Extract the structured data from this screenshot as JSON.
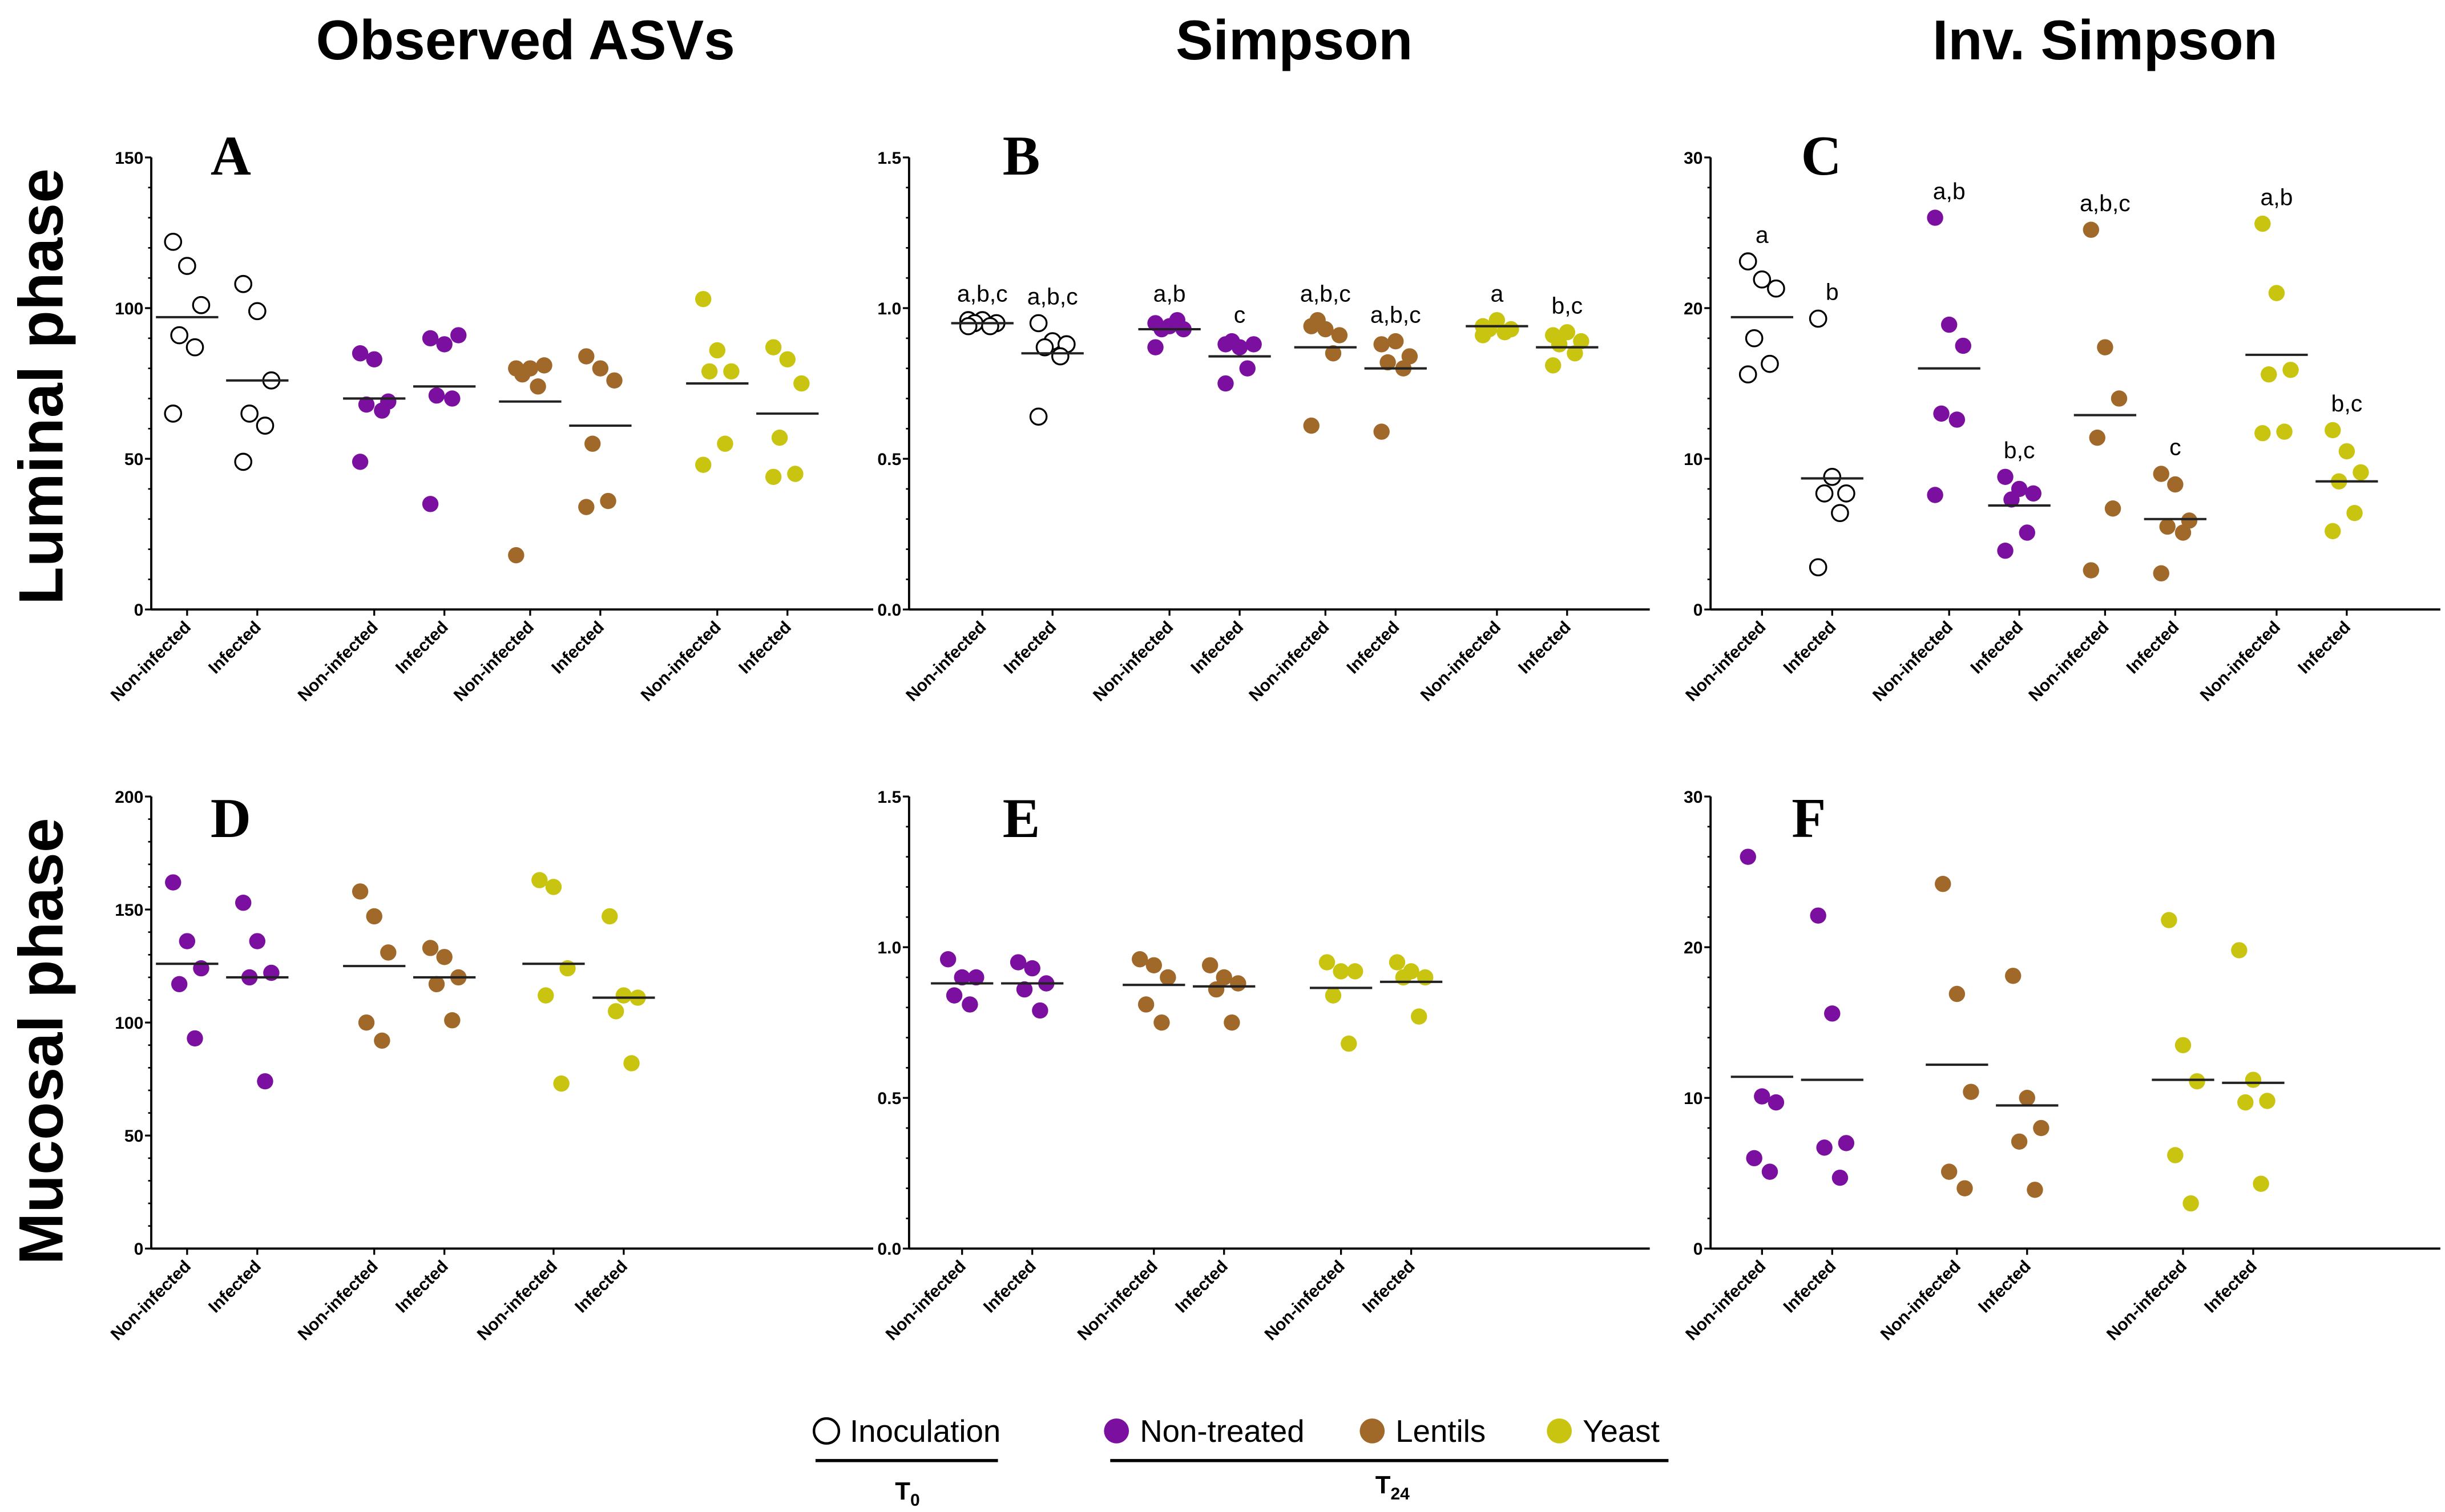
{
  "column_titles": [
    "Observed ASVs",
    "Simpson",
    "Inv. Simpson"
  ],
  "row_titles": [
    "Luminal phase",
    "Mucosal phase"
  ],
  "legend": {
    "items": [
      {
        "label": "Inoculation",
        "color": "#ffffff",
        "stroke": "#000000",
        "filled": false,
        "group": "T0"
      },
      {
        "label": "Non-treated",
        "color": "#7a0fa0",
        "filled": true,
        "group": "T24"
      },
      {
        "label": "Lentils",
        "color": "#a0692a",
        "filled": true,
        "group": "T24"
      },
      {
        "label": "Yeast",
        "color": "#c8c40f",
        "filled": true,
        "group": "T24"
      }
    ],
    "group_T0": "T",
    "group_T0_sub": "0",
    "group_T24": "T",
    "group_T24_sub": "24"
  },
  "chart_data": [
    {
      "panel": "A",
      "type": "scatter",
      "title": "Observed ASVs",
      "row": "Luminal phase",
      "ylim": [
        0,
        150
      ],
      "yticks": [
        0,
        50,
        100,
        150
      ],
      "categories": [
        "Non-infected",
        "Infected",
        "Non-infected",
        "Infected",
        "Non-infected",
        "Infected",
        "Non-infected",
        "Infected"
      ],
      "groups": [
        "Inoculation",
        "Inoculation",
        "Non-treated",
        "Non-treated",
        "Lentils",
        "Lentils",
        "Yeast",
        "Yeast"
      ],
      "means": [
        97,
        76,
        70,
        74,
        69,
        61,
        75,
        65
      ],
      "points": [
        [
          122,
          114,
          101,
          91,
          87,
          65
        ],
        [
          108,
          99,
          76,
          65,
          61,
          49
        ],
        [
          85,
          83,
          69,
          68,
          66,
          49
        ],
        [
          90,
          88,
          91,
          71,
          70,
          35
        ],
        [
          80,
          80,
          81,
          78,
          74,
          18
        ],
        [
          84,
          80,
          76,
          55,
          36,
          34
        ],
        [
          103,
          86,
          79,
          79,
          55,
          48
        ],
        [
          87,
          83,
          75,
          57,
          45,
          44
        ]
      ],
      "letters": [
        "",
        "",
        "",
        "",
        "",
        "",
        "",
        ""
      ]
    },
    {
      "panel": "B",
      "type": "scatter",
      "title": "Simpson",
      "row": "Luminal phase",
      "ylim": [
        0,
        1.5
      ],
      "yticks": [
        "0.0",
        "0.5",
        "1.0",
        "1.5"
      ],
      "categories": [
        "Non-infected",
        "Infected",
        "Non-infected",
        "Infected",
        "Non-infected",
        "Infected",
        "Non-infected",
        "Infected"
      ],
      "groups": [
        "Inoculation",
        "Inoculation",
        "Non-treated",
        "Non-treated",
        "Lentils",
        "Lentils",
        "Yeast",
        "Yeast"
      ],
      "means": [
        0.95,
        0.85,
        0.93,
        0.84,
        0.87,
        0.8,
        0.94,
        0.87
      ],
      "points": [
        [
          0.96,
          0.96,
          0.95,
          0.95,
          0.94,
          0.94
        ],
        [
          0.95,
          0.89,
          0.88,
          0.87,
          0.84,
          0.64
        ],
        [
          0.95,
          0.94,
          0.93,
          0.93,
          0.96,
          0.87
        ],
        [
          0.88,
          0.87,
          0.88,
          0.89,
          0.8,
          0.75
        ],
        [
          0.94,
          0.93,
          0.91,
          0.96,
          0.85,
          0.61
        ],
        [
          0.88,
          0.89,
          0.84,
          0.82,
          0.8,
          0.59
        ],
        [
          0.94,
          0.96,
          0.93,
          0.93,
          0.92,
          0.91
        ],
        [
          0.91,
          0.92,
          0.89,
          0.88,
          0.85,
          0.81
        ]
      ],
      "letters": [
        "a,b,c",
        "a,b,c",
        "a,b",
        "c",
        "a,b,c",
        "a,b,c",
        "a",
        "b,c"
      ]
    },
    {
      "panel": "C",
      "type": "scatter",
      "title": "Inv. Simpson",
      "row": "Luminal phase",
      "ylim": [
        0,
        30
      ],
      "yticks": [
        0,
        10,
        20,
        30
      ],
      "categories": [
        "Non-infected",
        "Infected",
        "Non-infected",
        "Infected",
        "Non-infected",
        "Infected",
        "Non-infected",
        "Infected"
      ],
      "groups": [
        "Inoculation",
        "Inoculation",
        "Non-treated",
        "Non-treated",
        "Lentils",
        "Lentils",
        "Yeast",
        "Yeast"
      ],
      "means": [
        19.4,
        8.7,
        16.0,
        6.9,
        12.9,
        6.0,
        16.9,
        8.5
      ],
      "points": [
        [
          23.1,
          21.9,
          21.3,
          18.0,
          16.3,
          15.6
        ],
        [
          19.3,
          8.8,
          7.7,
          7.7,
          6.4,
          2.8
        ],
        [
          26.0,
          18.9,
          17.5,
          13.0,
          12.6,
          7.6
        ],
        [
          8.8,
          8.0,
          7.7,
          7.3,
          5.1,
          3.9
        ],
        [
          25.2,
          17.4,
          14.0,
          11.4,
          6.7,
          2.6
        ],
        [
          9.0,
          8.3,
          5.9,
          5.5,
          5.1,
          2.4
        ],
        [
          25.6,
          21.0,
          15.9,
          15.6,
          11.8,
          11.7
        ],
        [
          11.9,
          10.5,
          9.1,
          8.5,
          6.4,
          5.2
        ]
      ],
      "letters": [
        "a",
        "b",
        "a,b",
        "b,c",
        "a,b,c",
        "c",
        "a,b",
        "b,c"
      ]
    },
    {
      "panel": "D",
      "type": "scatter",
      "title": "Observed ASVs",
      "row": "Mucosal phase",
      "ylim": [
        0,
        200
      ],
      "yticks": [
        0,
        50,
        100,
        150,
        200
      ],
      "categories": [
        "Non-infected",
        "Infected",
        "Non-infected",
        "Infected",
        "Non-infected",
        "Infected"
      ],
      "groups": [
        "Non-treated",
        "Non-treated",
        "Lentils",
        "Lentils",
        "Yeast",
        "Yeast"
      ],
      "means": [
        126,
        120,
        125,
        120,
        126,
        111
      ],
      "points": [
        [
          162,
          136,
          124,
          117,
          93
        ],
        [
          153,
          136,
          122,
          120,
          74
        ],
        [
          158,
          147,
          131,
          100,
          92
        ],
        [
          133,
          129,
          120,
          117,
          101
        ],
        [
          163,
          160,
          124,
          112,
          73
        ],
        [
          147,
          112,
          111,
          105,
          82
        ]
      ],
      "letters": [
        "",
        "",
        "",
        "",
        "",
        ""
      ]
    },
    {
      "panel": "E",
      "type": "scatter",
      "title": "Simpson",
      "row": "Mucosal phase",
      "ylim": [
        0,
        1.5
      ],
      "yticks": [
        "0.0",
        "0.5",
        "1.0",
        "1.5"
      ],
      "categories": [
        "Non-infected",
        "Infected",
        "Non-infected",
        "Infected",
        "Non-infected",
        "Infected"
      ],
      "groups": [
        "Non-treated",
        "Non-treated",
        "Lentils",
        "Lentils",
        "Yeast",
        "Yeast"
      ],
      "means": [
        0.88,
        0.88,
        0.875,
        0.87,
        0.865,
        0.885
      ],
      "points": [
        [
          0.96,
          0.9,
          0.9,
          0.84,
          0.81
        ],
        [
          0.95,
          0.93,
          0.88,
          0.86,
          0.79
        ],
        [
          0.96,
          0.94,
          0.9,
          0.81,
          0.75
        ],
        [
          0.94,
          0.9,
          0.88,
          0.86,
          0.75
        ],
        [
          0.95,
          0.92,
          0.92,
          0.84,
          0.68
        ],
        [
          0.95,
          0.92,
          0.9,
          0.9,
          0.77
        ]
      ],
      "letters": [
        "",
        "",
        "",
        "",
        "",
        ""
      ]
    },
    {
      "panel": "F",
      "type": "scatter",
      "title": "Inv. Simpson",
      "row": "Mucosal phase",
      "ylim": [
        0,
        30
      ],
      "yticks": [
        0,
        10,
        20,
        30
      ],
      "categories": [
        "Non-infected",
        "Infected",
        "Non-infected",
        "Infected",
        "Non-infected",
        "Infected"
      ],
      "groups": [
        "Non-treated",
        "Non-treated",
        "Lentils",
        "Lentils",
        "Yeast",
        "Yeast"
      ],
      "means": [
        11.4,
        11.2,
        12.2,
        9.5,
        11.2,
        11.0
      ],
      "points": [
        [
          26.0,
          10.1,
          9.7,
          6.0,
          5.1
        ],
        [
          22.1,
          15.6,
          7.0,
          6.7,
          4.7
        ],
        [
          24.2,
          16.9,
          10.4,
          5.1,
          4.0
        ],
        [
          18.1,
          10.0,
          8.0,
          7.1,
          3.9
        ],
        [
          21.8,
          13.5,
          11.1,
          6.2,
          3.0
        ],
        [
          19.8,
          11.2,
          9.8,
          9.7,
          4.3
        ]
      ],
      "letters": [
        "",
        "",
        "",
        "",
        "",
        ""
      ]
    }
  ]
}
